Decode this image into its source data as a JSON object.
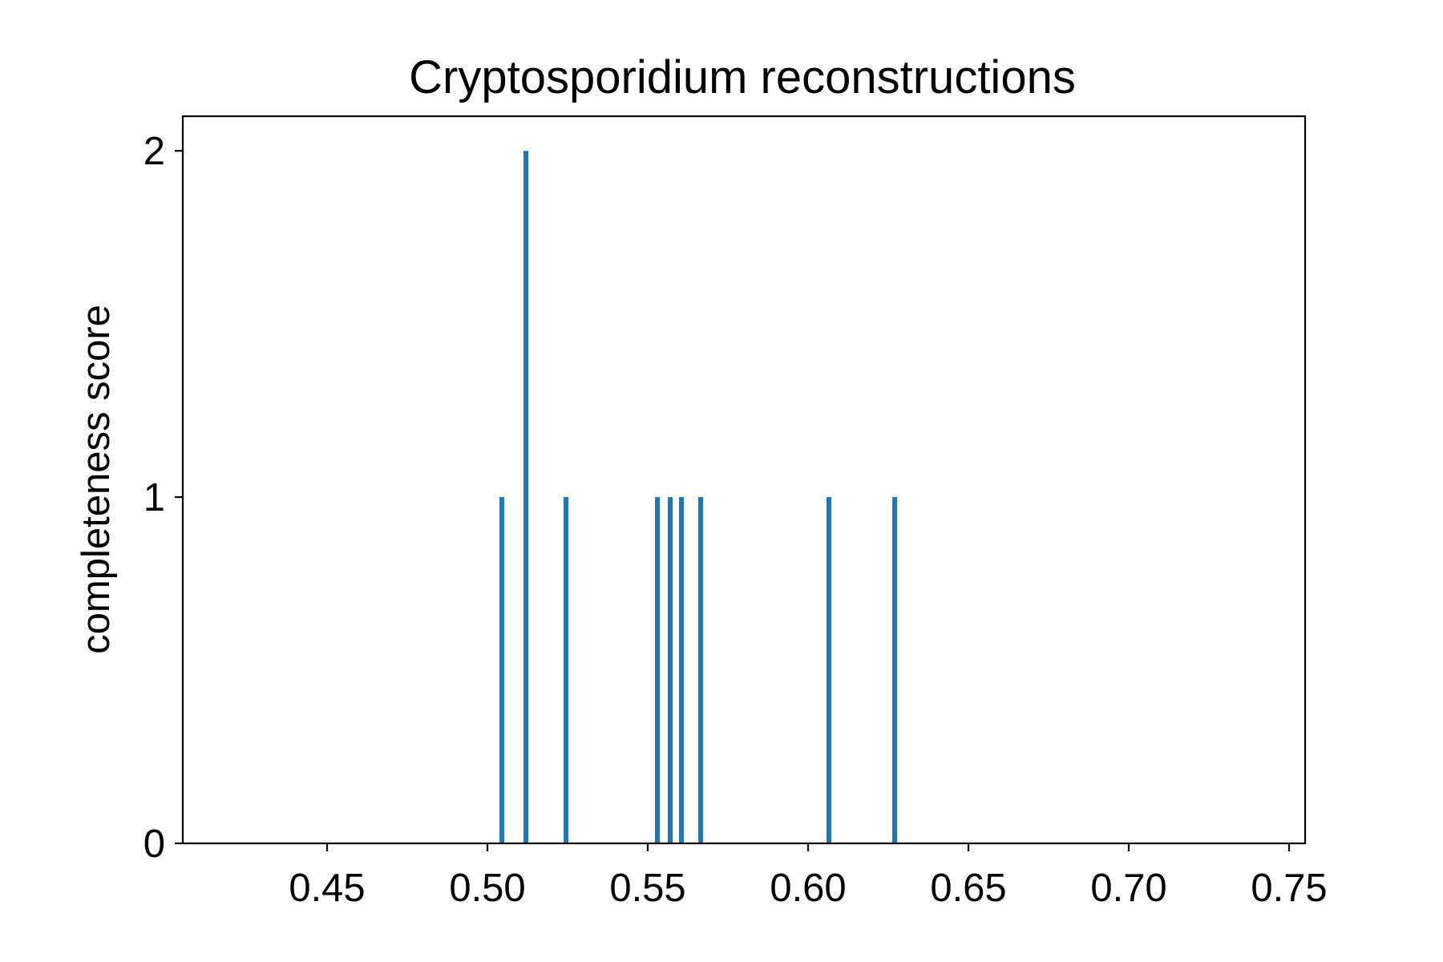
{
  "chart_data": {
    "type": "bar",
    "title": "Cryptosporidium reconstructions",
    "xlabel": "",
    "ylabel": "completeness score",
    "xlim": [
      0.405,
      0.755
    ],
    "ylim": [
      0,
      2.1
    ],
    "xticks": [
      0.45,
      0.5,
      0.55,
      0.6,
      0.65,
      0.7,
      0.75
    ],
    "xtick_labels": [
      "0.45",
      "0.50",
      "0.55",
      "0.60",
      "0.65",
      "0.70",
      "0.75"
    ],
    "yticks": [
      0,
      1,
      2
    ],
    "ytick_labels": [
      "0",
      "1",
      "2"
    ],
    "grid": false,
    "legend": "none",
    "bar_color": "#1f77b4",
    "bar_width": 0.0015,
    "x": [
      0.5045,
      0.512,
      0.5245,
      0.553,
      0.557,
      0.5605,
      0.5665,
      0.6065,
      0.627
    ],
    "values": [
      1,
      2,
      1,
      1,
      1,
      1,
      1,
      1,
      1
    ]
  }
}
